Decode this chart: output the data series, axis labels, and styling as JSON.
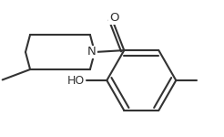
{
  "background": "#ffffff",
  "line_color": "#333333",
  "line_width": 1.5,
  "figsize": [
    2.46,
    1.5
  ],
  "dpi": 100,
  "label_N": "N",
  "label_O": "O",
  "label_HO": "HO"
}
